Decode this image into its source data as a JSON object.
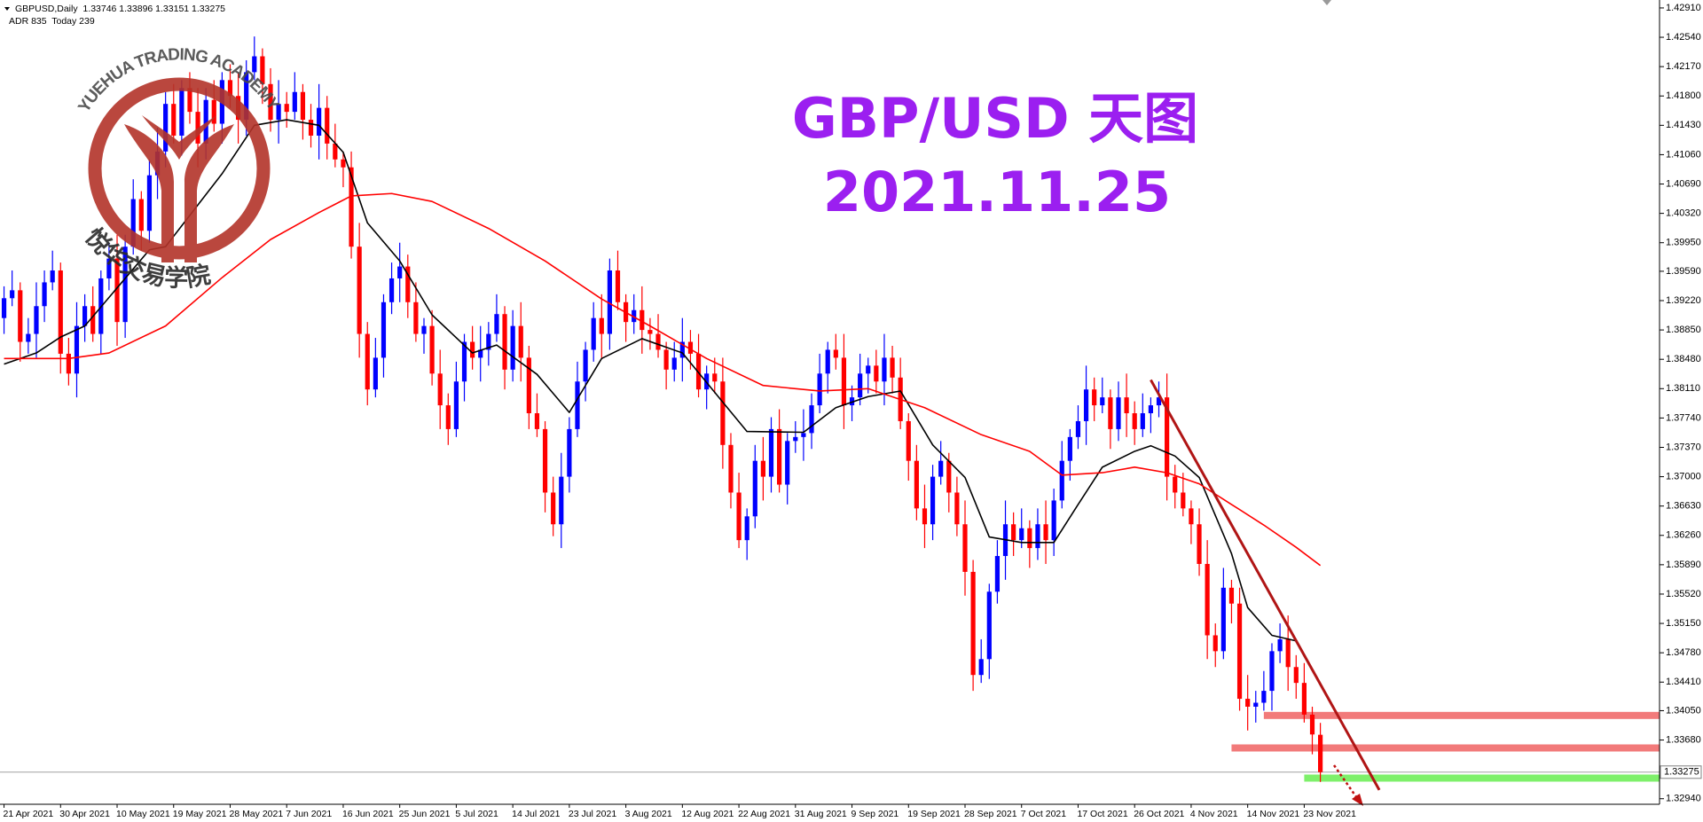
{
  "chart_data": {
    "type": "candlestick",
    "info_line": "GBPUSD,Daily  1.33746 1.33896 1.33151 1.33275",
    "indicator_line": "ADR 835  Today 239",
    "title": "GBP/USD 天图",
    "subtitle": "2021.11.25",
    "title_color": "#9b1ff0",
    "logo": {
      "text_en": "YUEHUA TRADING ACADEMY",
      "text_cn": "悦华交易学院",
      "color": "#b3342a"
    },
    "up_color": "#0000ff",
    "down_color": "#ff0000",
    "xlim": [
      -0.5,
      205
    ],
    "ylim": [
      1.3287,
      1.4301
    ],
    "yticks": [
      {
        "value": 1.4291,
        "label": "1.42910"
      },
      {
        "value": 1.4254,
        "label": "1.42540"
      },
      {
        "value": 1.4217,
        "label": "1.42170"
      },
      {
        "value": 1.418,
        "label": "1.41800"
      },
      {
        "value": 1.4143,
        "label": "1.41430"
      },
      {
        "value": 1.4106,
        "label": "1.41060"
      },
      {
        "value": 1.4069,
        "label": "1.40690"
      },
      {
        "value": 1.4032,
        "label": "1.40320"
      },
      {
        "value": 1.3995,
        "label": "1.39950"
      },
      {
        "value": 1.3959,
        "label": "1.39590"
      },
      {
        "value": 1.3922,
        "label": "1.39220"
      },
      {
        "value": 1.3885,
        "label": "1.38850"
      },
      {
        "value": 1.3848,
        "label": "1.38480"
      },
      {
        "value": 1.3811,
        "label": "1.38110"
      },
      {
        "value": 1.3774,
        "label": "1.37740"
      },
      {
        "value": 1.3737,
        "label": "1.37370"
      },
      {
        "value": 1.37,
        "label": "1.37000"
      },
      {
        "value": 1.3663,
        "label": "1.36630"
      },
      {
        "value": 1.3626,
        "label": "1.36260"
      },
      {
        "value": 1.3589,
        "label": "1.35890"
      },
      {
        "value": 1.3552,
        "label": "1.35520"
      },
      {
        "value": 1.3515,
        "label": "1.35150"
      },
      {
        "value": 1.3478,
        "label": "1.34780"
      },
      {
        "value": 1.3441,
        "label": "1.34410"
      },
      {
        "value": 1.3405,
        "label": "1.34050"
      },
      {
        "value": 1.3368,
        "label": "1.33680"
      },
      {
        "value": 1.3294,
        "label": "1.32940"
      }
    ],
    "last_price": {
      "value": 1.33275,
      "label": "1.33275",
      "color": "#a0a0a0"
    },
    "categories": [
      "21 Apr 2021",
      null,
      null,
      null,
      null,
      null,
      null,
      "30 Apr 2021",
      null,
      null,
      null,
      null,
      null,
      null,
      "10 May 2021",
      null,
      null,
      null,
      null,
      null,
      null,
      "19 May 2021",
      null,
      null,
      null,
      null,
      null,
      null,
      "28 May 2021",
      null,
      null,
      null,
      null,
      null,
      null,
      "7 Jun 2021",
      null,
      null,
      null,
      null,
      null,
      null,
      "16 Jun 2021",
      null,
      null,
      null,
      null,
      null,
      null,
      "25 Jun 2021",
      null,
      null,
      null,
      null,
      null,
      null,
      "5 Jul 2021",
      null,
      null,
      null,
      null,
      null,
      null,
      "14 Jul 2021",
      null,
      null,
      null,
      null,
      null,
      null,
      "23 Jul 2021",
      null,
      null,
      null,
      null,
      null,
      null,
      "3 Aug 2021",
      null,
      null,
      null,
      null,
      null,
      null,
      "12 Aug 2021",
      null,
      null,
      null,
      null,
      null,
      null,
      "22 Aug 2021",
      null,
      null,
      null,
      null,
      null,
      null,
      "31 Aug 2021",
      null,
      null,
      null,
      null,
      null,
      null,
      "9 Sep 2021",
      null,
      null,
      null,
      null,
      null,
      null,
      "19 Sep 2021",
      null,
      null,
      null,
      null,
      null,
      null,
      "28 Sep 2021",
      null,
      null,
      null,
      null,
      null,
      null,
      "7 Oct 2021",
      null,
      null,
      null,
      null,
      null,
      null,
      "17 Oct 2021",
      null,
      null,
      null,
      null,
      null,
      null,
      "26 Oct 2021",
      null,
      null,
      null,
      null,
      null,
      null,
      "4 Nov 2021",
      null,
      null,
      null,
      null,
      null,
      null,
      "14 Nov 2021",
      null,
      null,
      null,
      null,
      null,
      null,
      "23 Nov 2021",
      null,
      null
    ],
    "open": [
      1.39,
      1.3925,
      1.3935,
      1.387,
      1.388,
      1.3915,
      1.3945,
      1.396,
      1.3855,
      1.383,
      1.389,
      1.3915,
      1.388,
      1.395,
      1.3975,
      1.3895,
      1.399,
      1.405,
      1.401,
      1.408,
      1.411,
      1.417,
      1.413,
      1.419,
      1.416,
      1.412,
      1.4175,
      1.4145,
      1.42,
      1.418,
      1.415,
      1.421,
      1.423,
      1.4195,
      1.415,
      1.417,
      1.416,
      1.4185,
      1.415,
      1.413,
      1.4165,
      1.412,
      1.41,
      1.409,
      1.399,
      1.388,
      1.381,
      1.385,
      1.392,
      1.395,
      1.3965,
      1.392,
      1.388,
      1.389,
      1.383,
      1.379,
      1.376,
      1.382,
      1.387,
      1.385,
      1.386,
      1.388,
      1.3905,
      1.3835,
      1.389,
      1.385,
      1.378,
      1.376,
      1.368,
      1.364,
      1.37,
      1.376,
      1.382,
      1.386,
      1.39,
      1.388,
      1.396,
      1.392,
      1.3895,
      1.391,
      1.3885,
      1.388,
      1.386,
      1.3835,
      1.385,
      1.387,
      1.3855,
      1.381,
      1.383,
      1.382,
      1.374,
      1.368,
      1.362,
      1.365,
      1.372,
      1.37,
      1.376,
      1.369,
      1.3745,
      1.375,
      1.3755,
      1.379,
      1.383,
      1.386,
      1.385,
      1.379,
      1.38,
      1.383,
      1.384,
      1.382,
      1.385,
      1.3825,
      1.377,
      1.372,
      1.366,
      1.364,
      1.37,
      1.372,
      1.368,
      1.364,
      1.358,
      1.345,
      1.347,
      1.3555,
      1.36,
      1.364,
      1.362,
      1.3635,
      1.361,
      1.364,
      1.362,
      1.367,
      1.372,
      1.375,
      1.377,
      1.381,
      1.379,
      1.38,
      1.376,
      1.38,
      1.378,
      1.376,
      1.378,
      1.379,
      1.38,
      1.37,
      1.368,
      1.366,
      1.364,
      1.359,
      1.35,
      1.348,
      1.356,
      1.354,
      1.342,
      1.341,
      1.3415,
      1.343,
      1.348,
      1.3495,
      1.346,
      1.344,
      1.34,
      1.33746
    ],
    "high": [
      1.394,
      1.396,
      1.3945,
      1.39,
      1.3945,
      1.396,
      1.3985,
      1.397,
      1.3875,
      1.392,
      1.393,
      1.394,
      1.396,
      1.3995,
      1.4005,
      1.4005,
      1.4075,
      1.406,
      1.41,
      1.414,
      1.4185,
      1.4195,
      1.42,
      1.421,
      1.419,
      1.419,
      1.42,
      1.421,
      1.422,
      1.421,
      1.4225,
      1.4255,
      1.424,
      1.4215,
      1.42,
      1.4185,
      1.421,
      1.4195,
      1.417,
      1.4195,
      1.418,
      1.4145,
      1.411,
      1.411,
      1.402,
      1.3895,
      1.3875,
      1.393,
      1.397,
      1.3995,
      1.398,
      1.3945,
      1.39,
      1.391,
      1.386,
      1.3805,
      1.3845,
      1.388,
      1.389,
      1.389,
      1.3895,
      1.393,
      1.3915,
      1.391,
      1.392,
      1.3865,
      1.3805,
      1.377,
      1.37,
      1.373,
      1.3775,
      1.3845,
      1.387,
      1.392,
      1.393,
      1.3975,
      1.3985,
      1.393,
      1.393,
      1.394,
      1.39,
      1.3905,
      1.387,
      1.387,
      1.39,
      1.3885,
      1.388,
      1.384,
      1.385,
      1.385,
      1.3755,
      1.3705,
      1.366,
      1.374,
      1.375,
      1.3775,
      1.3785,
      1.3755,
      1.377,
      1.3785,
      1.3805,
      1.3855,
      1.387,
      1.388,
      1.388,
      1.3815,
      1.3855,
      1.385,
      1.386,
      1.388,
      1.3865,
      1.385,
      1.378,
      1.374,
      1.369,
      1.3715,
      1.3745,
      1.373,
      1.37,
      1.367,
      1.3595,
      1.3495,
      1.3565,
      1.362,
      1.367,
      1.3655,
      1.366,
      1.3645,
      1.366,
      1.367,
      1.3685,
      1.3745,
      1.376,
      1.379,
      1.384,
      1.3825,
      1.3825,
      1.381,
      1.382,
      1.383,
      1.3795,
      1.3805,
      1.38,
      1.382,
      1.383,
      1.3715,
      1.3705,
      1.367,
      1.366,
      1.362,
      1.3515,
      1.3585,
      1.357,
      1.356,
      1.345,
      1.343,
      1.3455,
      1.349,
      1.3515,
      1.3525,
      1.3475,
      1.3465,
      1.341,
      1.33896
    ],
    "low": [
      1.388,
      1.3915,
      1.3845,
      1.3855,
      1.385,
      1.3895,
      1.3935,
      1.383,
      1.3815,
      1.38,
      1.387,
      1.387,
      1.3855,
      1.3935,
      1.3865,
      1.3875,
      1.398,
      1.3985,
      1.3995,
      1.405,
      1.409,
      1.412,
      1.4105,
      1.4145,
      1.409,
      1.41,
      1.4135,
      1.412,
      1.4165,
      1.412,
      1.413,
      1.42,
      1.417,
      1.4135,
      1.412,
      1.414,
      1.415,
      1.4125,
      1.4115,
      1.41,
      1.41,
      1.409,
      1.4065,
      1.3975,
      1.385,
      1.379,
      1.38,
      1.3825,
      1.3905,
      1.392,
      1.39,
      1.387,
      1.3855,
      1.3815,
      1.376,
      1.374,
      1.375,
      1.3795,
      1.3835,
      1.382,
      1.384,
      1.387,
      1.381,
      1.382,
      1.382,
      1.376,
      1.375,
      1.3655,
      1.3625,
      1.361,
      1.368,
      1.375,
      1.3795,
      1.3845,
      1.385,
      1.386,
      1.391,
      1.387,
      1.388,
      1.3855,
      1.386,
      1.385,
      1.381,
      1.382,
      1.382,
      1.3835,
      1.38,
      1.3785,
      1.3805,
      1.371,
      1.366,
      1.361,
      1.3595,
      1.3635,
      1.367,
      1.368,
      1.368,
      1.3665,
      1.373,
      1.372,
      1.3735,
      1.378,
      1.3805,
      1.3835,
      1.376,
      1.377,
      1.379,
      1.3805,
      1.3805,
      1.379,
      1.3805,
      1.376,
      1.3695,
      1.3645,
      1.361,
      1.362,
      1.369,
      1.3655,
      1.3625,
      1.355,
      1.343,
      1.344,
      1.3445,
      1.354,
      1.357,
      1.36,
      1.361,
      1.3585,
      1.3595,
      1.359,
      1.36,
      1.366,
      1.3695,
      1.3735,
      1.374,
      1.377,
      1.378,
      1.3735,
      1.3745,
      1.375,
      1.374,
      1.375,
      1.3755,
      1.3775,
      1.367,
      1.366,
      1.365,
      1.3615,
      1.3575,
      1.347,
      1.346,
      1.347,
      1.3515,
      1.3405,
      1.338,
      1.339,
      1.3405,
      1.3405,
      1.3465,
      1.343,
      1.342,
      1.339,
      1.335,
      1.33151
    ],
    "close": [
      1.3925,
      1.3935,
      1.387,
      1.388,
      1.3915,
      1.3945,
      1.396,
      1.3855,
      1.383,
      1.389,
      1.3915,
      1.388,
      1.395,
      1.3975,
      1.3895,
      1.399,
      1.405,
      1.401,
      1.408,
      1.411,
      1.417,
      1.413,
      1.419,
      1.416,
      1.412,
      1.4175,
      1.4145,
      1.42,
      1.418,
      1.415,
      1.421,
      1.423,
      1.4195,
      1.415,
      1.417,
      1.416,
      1.4185,
      1.415,
      1.413,
      1.4165,
      1.412,
      1.41,
      1.409,
      1.399,
      1.388,
      1.381,
      1.385,
      1.392,
      1.395,
      1.3965,
      1.392,
      1.388,
      1.389,
      1.383,
      1.379,
      1.376,
      1.382,
      1.387,
      1.385,
      1.386,
      1.388,
      1.3905,
      1.3835,
      1.389,
      1.385,
      1.378,
      1.376,
      1.368,
      1.364,
      1.37,
      1.376,
      1.382,
      1.386,
      1.39,
      1.388,
      1.396,
      1.392,
      1.3895,
      1.391,
      1.3885,
      1.388,
      1.386,
      1.3835,
      1.385,
      1.387,
      1.3855,
      1.381,
      1.383,
      1.382,
      1.374,
      1.368,
      1.362,
      1.365,
      1.372,
      1.37,
      1.376,
      1.369,
      1.3745,
      1.375,
      1.3755,
      1.379,
      1.383,
      1.386,
      1.385,
      1.379,
      1.38,
      1.383,
      1.384,
      1.382,
      1.385,
      1.3825,
      1.377,
      1.372,
      1.366,
      1.364,
      1.37,
      1.372,
      1.368,
      1.364,
      1.358,
      1.345,
      1.347,
      1.3555,
      1.36,
      1.364,
      1.362,
      1.3635,
      1.361,
      1.364,
      1.362,
      1.367,
      1.372,
      1.375,
      1.377,
      1.381,
      1.379,
      1.38,
      1.376,
      1.38,
      1.378,
      1.376,
      1.378,
      1.379,
      1.38,
      1.37,
      1.368,
      1.366,
      1.364,
      1.359,
      1.35,
      1.348,
      1.356,
      1.354,
      1.342,
      1.341,
      1.3415,
      1.343,
      1.348,
      1.3495,
      1.346,
      1.344,
      1.34,
      1.3375,
      1.33275
    ],
    "indicators": [
      {
        "color": "#000000",
        "x": [
          0,
          4,
          7,
          10,
          14,
          18,
          20,
          27,
          31,
          35,
          39,
          42,
          45,
          49,
          53,
          58,
          61,
          66,
          70,
          74,
          79,
          84,
          89,
          92,
          99,
          103,
          107,
          111,
          115,
          119,
          122,
          126,
          130,
          133,
          136,
          140,
          142,
          145,
          148,
          152,
          154,
          157,
          160,
          163
        ],
        "values": [
          1.3842,
          1.3856,
          1.3876,
          1.389,
          1.3938,
          1.3986,
          1.399,
          1.4082,
          1.4143,
          1.415,
          1.4143,
          1.4109,
          1.402,
          1.3972,
          1.3904,
          1.3856,
          1.3866,
          1.3829,
          1.3781,
          1.3849,
          1.3874,
          1.3856,
          1.3794,
          1.3757,
          1.3756,
          1.3787,
          1.3801,
          1.3808,
          1.374,
          1.3699,
          1.3624,
          1.3617,
          1.3617,
          1.3665,
          1.3712,
          1.3732,
          1.3739,
          1.3726,
          1.3699,
          1.3603,
          1.3535,
          1.35,
          1.3493,
          1.3439
        ]
      },
      {
        "color": "#ff0000",
        "x": [
          0,
          8,
          13,
          20,
          27,
          33,
          39,
          43,
          48,
          53,
          60,
          67,
          74,
          80,
          87,
          94,
          101,
          107,
          114,
          121,
          127,
          131,
          136,
          140,
          144,
          148,
          152,
          156,
          160,
          163
        ],
        "values": [
          1.3849,
          1.3849,
          1.3856,
          1.389,
          1.3951,
          1.3999,
          1.4033,
          1.4054,
          1.4057,
          1.4047,
          1.4013,
          1.3972,
          1.3924,
          1.389,
          1.3849,
          1.3815,
          1.3808,
          1.3811,
          1.3787,
          1.3753,
          1.3732,
          1.3702,
          1.3705,
          1.3712,
          1.3705,
          1.3691,
          1.3665,
          1.3639,
          1.3611,
          1.3588
        ]
      }
    ],
    "trendline": {
      "color": "#b01515",
      "x": [
        142,
        170.3
      ],
      "values": [
        1.3822,
        1.3305
      ]
    },
    "zones": [
      {
        "color": "#f27a7a",
        "x_start": 156,
        "value": 1.3399
      },
      {
        "color": "#f27a7a",
        "x_start": 152,
        "value": 1.3358
      },
      {
        "color": "#7ef06a",
        "x_start": 161,
        "value": 1.332
      }
    ]
  }
}
